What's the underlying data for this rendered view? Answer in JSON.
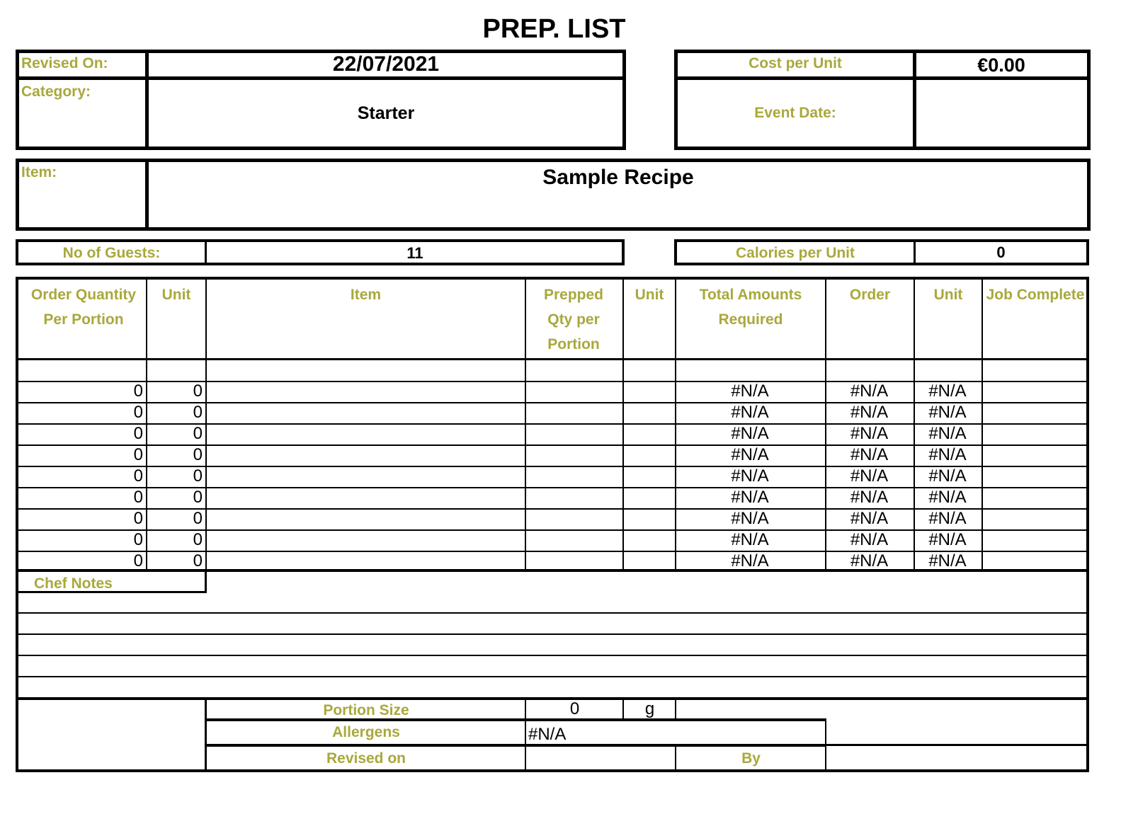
{
  "title": "PREP. LIST",
  "header": {
    "revised_on_label": "Revised On:",
    "revised_on": "22/07/2021",
    "category_label": "Category:",
    "category": "Starter",
    "cost_label": "Cost per Unit",
    "cost": "€0.00",
    "event_date_label": "Event Date:",
    "event_date": "",
    "item_label": "Item:",
    "item": "Sample Recipe",
    "guests_label": "No of Guests:",
    "guests": "11",
    "calories_label": "Calories per Unit",
    "calories": "0"
  },
  "table": {
    "columns": [
      "Order Quantity Per Portion",
      "Unit",
      "Item",
      "Prepped Qty per Portion",
      "Unit",
      "Total Amounts Required",
      "Order",
      "Unit",
      "Job Complete"
    ],
    "rows": [
      [
        "",
        "",
        "",
        "",
        "",
        "",
        "",
        "",
        ""
      ],
      [
        "0",
        "0",
        "",
        "",
        "",
        "#N/A",
        "#N/A",
        "#N/A",
        ""
      ],
      [
        "0",
        "0",
        "",
        "",
        "",
        "#N/A",
        "#N/A",
        "#N/A",
        ""
      ],
      [
        "0",
        "0",
        "",
        "",
        "",
        "#N/A",
        "#N/A",
        "#N/A",
        ""
      ],
      [
        "0",
        "0",
        "",
        "",
        "",
        "#N/A",
        "#N/A",
        "#N/A",
        ""
      ],
      [
        "0",
        "0",
        "",
        "",
        "",
        "#N/A",
        "#N/A",
        "#N/A",
        ""
      ],
      [
        "0",
        "0",
        "",
        "",
        "",
        "#N/A",
        "#N/A",
        "#N/A",
        ""
      ],
      [
        "0",
        "0",
        "",
        "",
        "",
        "#N/A",
        "#N/A",
        "#N/A",
        ""
      ],
      [
        "0",
        "0",
        "",
        "",
        "",
        "#N/A",
        "#N/A",
        "#N/A",
        ""
      ],
      [
        "0",
        "0",
        "",
        "",
        "",
        "#N/A",
        "#N/A",
        "#N/A",
        ""
      ]
    ]
  },
  "chef_notes_label": "Chef Notes",
  "footer": {
    "portion_size_label": "Portion Size",
    "portion_size": "0",
    "portion_unit": "g",
    "allergens_label": "Allergens",
    "allergens": "#N/A",
    "revised_on_label": "Revised on",
    "revised_on": "",
    "by_label": "By",
    "by": ""
  },
  "colors": {
    "label": "#a9a83c",
    "border": "#000000"
  }
}
